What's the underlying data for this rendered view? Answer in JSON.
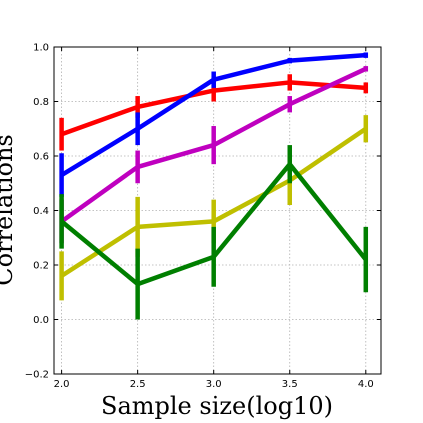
{
  "chart_data": {
    "type": "line",
    "title": "",
    "xlabel": "Sample size(log10)",
    "ylabel": "Correlations",
    "xlim": [
      1.95,
      4.1
    ],
    "ylim": [
      -0.2,
      1.0
    ],
    "xticks": [
      2.0,
      2.5,
      3.0,
      3.5,
      4.0
    ],
    "xtick_labels": [
      "2.0",
      "2.5",
      "3.0",
      "3.5",
      "4.0"
    ],
    "yticks": [
      -0.2,
      0.0,
      0.2,
      0.4,
      0.6,
      0.8,
      1.0
    ],
    "ytick_labels": [
      "−0.2",
      "0.0",
      "0.2",
      "0.4",
      "0.6",
      "0.8",
      "1.0"
    ],
    "grid": true,
    "x": [
      2.0,
      2.5,
      3.0,
      3.5,
      4.0
    ],
    "series": [
      {
        "color": "#ff0000",
        "values": [
          0.68,
          0.78,
          0.84,
          0.87,
          0.85
        ],
        "errors": [
          0.06,
          0.04,
          0.04,
          0.03,
          0.02
        ]
      },
      {
        "color": "#0000ff",
        "values": [
          0.53,
          0.7,
          0.88,
          0.95,
          0.97
        ],
        "errors": [
          0.08,
          0.06,
          0.03,
          0.01,
          0.01
        ]
      },
      {
        "color": "#bf00bf",
        "values": [
          0.36,
          0.56,
          0.64,
          0.79,
          0.92
        ],
        "errors": [
          0.08,
          0.06,
          0.07,
          0.03,
          0.01
        ]
      },
      {
        "color": "#bfbf00",
        "values": [
          0.16,
          0.34,
          0.36,
          0.51,
          0.7
        ],
        "errors": [
          0.09,
          0.11,
          0.08,
          0.09,
          0.05
        ]
      },
      {
        "color": "#007f00",
        "values": [
          0.36,
          0.13,
          0.23,
          0.57,
          0.22
        ],
        "errors": [
          0.1,
          0.13,
          0.11,
          0.07,
          0.12
        ]
      }
    ]
  }
}
